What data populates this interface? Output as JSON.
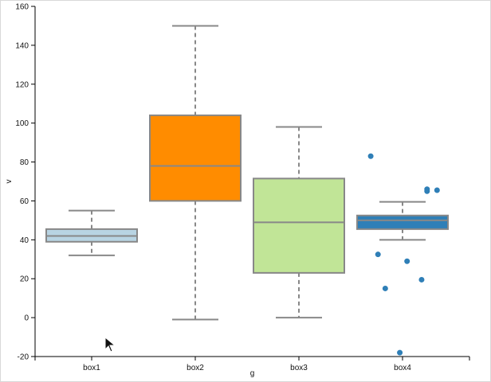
{
  "chart_data": {
    "type": "box",
    "title": "",
    "xlabel": "g",
    "ylabel": "v",
    "ylim": [
      -20,
      160
    ],
    "yticks": [
      -20,
      0,
      20,
      40,
      60,
      80,
      100,
      120,
      140,
      160
    ],
    "grid": false,
    "legend": "none",
    "categories": [
      "box1",
      "box2",
      "box3",
      "box4"
    ],
    "boxes": [
      {
        "name": "box1",
        "color": "#b8d4e3",
        "min": 32,
        "q1": 39,
        "median": 42,
        "q3": 45.5,
        "max": 55,
        "outliers": []
      },
      {
        "name": "box2",
        "color": "#ff8c00",
        "min": -1,
        "q1": 60,
        "median": 78,
        "q3": 104,
        "max": 150,
        "outliers": []
      },
      {
        "name": "box3",
        "color": "#c1e597",
        "min": 0,
        "q1": 23,
        "median": 49,
        "q3": 71.5,
        "max": 98,
        "outliers": []
      },
      {
        "name": "box4",
        "color": "#2f7fb7",
        "min": 40,
        "q1": 45.5,
        "median": 50,
        "q3": 52.5,
        "max": 59.5,
        "outliers": [
          {
            "dx": -0.35,
            "value": 83
          },
          {
            "dx": 0.27,
            "value": 66
          },
          {
            "dx": 0.27,
            "value": 65
          },
          {
            "dx": 0.38,
            "value": 65.5
          },
          {
            "dx": -0.27,
            "value": 32.5
          },
          {
            "dx": 0.05,
            "value": 29
          },
          {
            "dx": 0.21,
            "value": 19.5
          },
          {
            "dx": -0.19,
            "value": 15
          },
          {
            "dx": -0.03,
            "value": -18
          }
        ]
      }
    ]
  }
}
